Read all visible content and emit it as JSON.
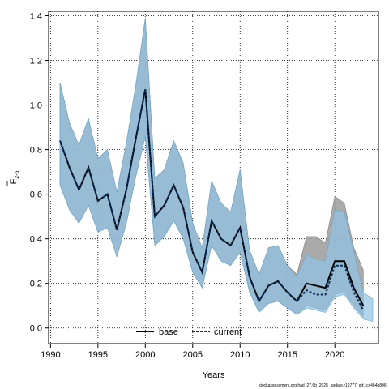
{
  "chart_data": {
    "type": "line",
    "xlabel": "Years",
    "ylabel_main": "F",
    "ylabel_sub": "2-5",
    "xlim": [
      1989.8,
      2024.6
    ],
    "ylim": [
      -0.07,
      1.42
    ],
    "xticks": [
      1990,
      1995,
      2000,
      2005,
      2010,
      2015,
      2020
    ],
    "yticks": [
      0.0,
      0.2,
      0.4,
      0.6,
      0.8,
      1.0,
      1.2,
      1.4
    ],
    "ytick_labels": [
      "0.0",
      "0.2",
      "0.4",
      "0.6",
      "0.8",
      "1.0",
      "1.2",
      "1.4"
    ],
    "grid": true,
    "legend_position": "bottom-center",
    "x": [
      1991,
      1992,
      1993,
      1994,
      1995,
      1996,
      1997,
      1998,
      1999,
      2000,
      2001,
      2002,
      2003,
      2004,
      2005,
      2006,
      2007,
      2008,
      2009,
      2010,
      2011,
      2012,
      2013,
      2014,
      2015,
      2016,
      2017,
      2018,
      2019,
      2020,
      2021,
      2022,
      2023
    ],
    "series": [
      {
        "name": "base",
        "color": "#000000",
        "band_color": "#9b9b9b",
        "values": [
          0.84,
          0.72,
          0.62,
          0.72,
          0.57,
          0.6,
          0.44,
          0.62,
          0.85,
          1.07,
          0.5,
          0.55,
          0.64,
          0.54,
          0.34,
          0.25,
          0.48,
          0.4,
          0.37,
          0.45,
          0.23,
          0.12,
          0.19,
          0.21,
          0.16,
          0.12,
          0.2,
          0.19,
          0.18,
          0.3,
          0.3,
          0.18,
          0.1
        ],
        "lower": [
          0.64,
          0.53,
          0.47,
          0.55,
          0.43,
          0.45,
          0.32,
          0.47,
          0.68,
          0.86,
          0.37,
          0.41,
          0.48,
          0.4,
          0.25,
          0.18,
          0.37,
          0.3,
          0.28,
          0.34,
          0.16,
          0.07,
          0.11,
          0.12,
          0.09,
          0.06,
          0.1,
          0.09,
          0.08,
          0.15,
          0.16,
          0.1,
          0.05
        ],
        "upper": [
          1.1,
          0.92,
          0.82,
          0.94,
          0.76,
          0.8,
          0.61,
          0.83,
          1.09,
          1.39,
          0.67,
          0.71,
          0.84,
          0.74,
          0.47,
          0.36,
          0.66,
          0.56,
          0.52,
          0.71,
          0.35,
          0.24,
          0.36,
          0.37,
          0.28,
          0.24,
          0.41,
          0.41,
          0.38,
          0.59,
          0.56,
          0.36,
          0.26
        ]
      },
      {
        "name": "current",
        "color": "#0c2f5c",
        "band_color": "#8ec3e4",
        "values": [
          0.84,
          0.72,
          0.62,
          0.72,
          0.57,
          0.6,
          0.44,
          0.62,
          0.85,
          1.07,
          0.5,
          0.55,
          0.64,
          0.54,
          0.34,
          0.25,
          0.48,
          0.4,
          0.37,
          0.45,
          0.23,
          0.12,
          0.19,
          0.21,
          0.16,
          0.12,
          0.17,
          0.15,
          0.15,
          0.28,
          0.28,
          0.16,
          0.08
        ],
        "x_upper_extra": [
          2024
        ],
        "lower": [
          0.64,
          0.53,
          0.47,
          0.55,
          0.43,
          0.45,
          0.32,
          0.47,
          0.68,
          0.86,
          0.37,
          0.41,
          0.48,
          0.4,
          0.25,
          0.18,
          0.37,
          0.3,
          0.28,
          0.34,
          0.16,
          0.07,
          0.11,
          0.12,
          0.09,
          0.06,
          0.09,
          0.08,
          0.07,
          0.14,
          0.15,
          0.09,
          0.04
        ],
        "upper": [
          1.1,
          0.92,
          0.82,
          0.94,
          0.76,
          0.8,
          0.61,
          0.83,
          1.09,
          1.39,
          0.67,
          0.71,
          0.84,
          0.74,
          0.47,
          0.36,
          0.66,
          0.56,
          0.52,
          0.71,
          0.35,
          0.24,
          0.36,
          0.37,
          0.28,
          0.23,
          0.33,
          0.31,
          0.3,
          0.53,
          0.52,
          0.34,
          0.16
        ]
      }
    ]
  },
  "footer": "stockassessment.org,had_27.6b_2025_update,r19777_git:1cc464b806f"
}
